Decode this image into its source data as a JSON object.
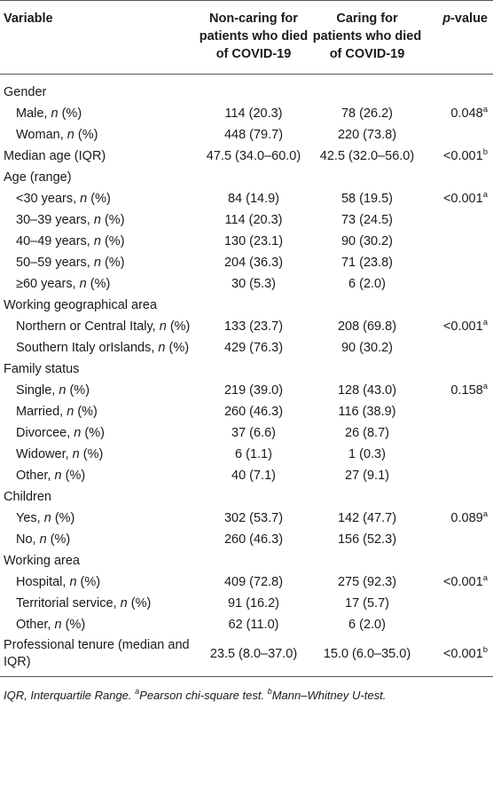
{
  "headers": {
    "variable": "Variable",
    "noncaring": "Non-caring for patients who died of COVID-19",
    "caring": "Caring for patients who died of COVID-19",
    "pvalue_italic": "p",
    "pvalue_rest": "-value"
  },
  "rows": [
    {
      "label": "Gender",
      "indent": false,
      "n_suffix": false,
      "c1": "",
      "c2": "",
      "p": "",
      "sup": ""
    },
    {
      "label": "Male, ",
      "indent": true,
      "n_suffix": true,
      "c1": "114 (20.3)",
      "c2": "78 (26.2)",
      "p": "0.048",
      "sup": "a"
    },
    {
      "label": "Woman, ",
      "indent": true,
      "n_suffix": true,
      "c1": "448 (79.7)",
      "c2": "220 (73.8)",
      "p": "",
      "sup": ""
    },
    {
      "label": "Median age (IQR)",
      "indent": false,
      "n_suffix": false,
      "c1": "47.5 (34.0–60.0)",
      "c2": "42.5 (32.0–56.0)",
      "p": "<0.001",
      "sup": "b"
    },
    {
      "label": "Age (range)",
      "indent": false,
      "n_suffix": false,
      "c1": "",
      "c2": "",
      "p": "",
      "sup": ""
    },
    {
      "label": "<30 years, ",
      "indent": true,
      "n_suffix": true,
      "c1": "84 (14.9)",
      "c2": "58 (19.5)",
      "p": "<0.001",
      "sup": "a"
    },
    {
      "label": "30–39 years, ",
      "indent": true,
      "n_suffix": true,
      "c1": "114 (20.3)",
      "c2": "73 (24.5)",
      "p": "",
      "sup": ""
    },
    {
      "label": "40–49 years, ",
      "indent": true,
      "n_suffix": true,
      "c1": "130 (23.1)",
      "c2": "90 (30.2)",
      "p": "",
      "sup": ""
    },
    {
      "label": "50–59 years, ",
      "indent": true,
      "n_suffix": true,
      "c1": "204 (36.3)",
      "c2": "71 (23.8)",
      "p": "",
      "sup": ""
    },
    {
      "label": "≥60 years, ",
      "indent": true,
      "n_suffix": true,
      "c1": "30 (5.3)",
      "c2": "6 (2.0)",
      "p": "",
      "sup": ""
    },
    {
      "label": "Working geographical area",
      "indent": false,
      "n_suffix": false,
      "c1": "",
      "c2": "",
      "p": "",
      "sup": ""
    },
    {
      "label": "Northern or Central Italy, ",
      "indent": true,
      "n_suffix": true,
      "c1": "133 (23.7)",
      "c2": "208 (69.8)",
      "p": "<0.001",
      "sup": "a"
    },
    {
      "label": "Southern Italy orIslands, ",
      "indent": true,
      "n_suffix": true,
      "c1": "429 (76.3)",
      "c2": "90 (30.2)",
      "p": "",
      "sup": ""
    },
    {
      "label": "Family status",
      "indent": false,
      "n_suffix": false,
      "c1": "",
      "c2": "",
      "p": "",
      "sup": ""
    },
    {
      "label": "Single, ",
      "indent": true,
      "n_suffix": true,
      "c1": "219 (39.0)",
      "c2": "128 (43.0)",
      "p": "0.158",
      "sup": "a"
    },
    {
      "label": "Married, ",
      "indent": true,
      "n_suffix": true,
      "c1": "260 (46.3)",
      "c2": "116 (38.9)",
      "p": "",
      "sup": ""
    },
    {
      "label": "Divorcee, ",
      "indent": true,
      "n_suffix": true,
      "c1": "37 (6.6)",
      "c2": "26 (8.7)",
      "p": "",
      "sup": ""
    },
    {
      "label": "Widower, ",
      "indent": true,
      "n_suffix": true,
      "c1": "6 (1.1)",
      "c2": "1 (0.3)",
      "p": "",
      "sup": ""
    },
    {
      "label": "Other, ",
      "indent": true,
      "n_suffix": true,
      "c1": "40 (7.1)",
      "c2": "27 (9.1)",
      "p": "",
      "sup": ""
    },
    {
      "label": "Children",
      "indent": false,
      "n_suffix": false,
      "c1": "",
      "c2": "",
      "p": "",
      "sup": ""
    },
    {
      "label": "Yes, ",
      "indent": true,
      "n_suffix": true,
      "c1": "302 (53.7)",
      "c2": "142 (47.7)",
      "p": "0.089",
      "sup": "a"
    },
    {
      "label": "No, ",
      "indent": true,
      "n_suffix": true,
      "c1": "260 (46.3)",
      "c2": "156 (52.3)",
      "p": "",
      "sup": ""
    },
    {
      "label": "Working area",
      "indent": false,
      "n_suffix": false,
      "c1": "",
      "c2": "",
      "p": "",
      "sup": ""
    },
    {
      "label": "Hospital, ",
      "indent": true,
      "n_suffix": true,
      "c1": "409 (72.8)",
      "c2": "275 (92.3)",
      "p": "<0.001",
      "sup": "a"
    },
    {
      "label": "Territorial service, ",
      "indent": true,
      "n_suffix": true,
      "c1": "91 (16.2)",
      "c2": "17 (5.7)",
      "p": "",
      "sup": ""
    },
    {
      "label": "Other, ",
      "indent": true,
      "n_suffix": true,
      "c1": "62 (11.0)",
      "c2": "6 (2.0)",
      "p": "",
      "sup": ""
    },
    {
      "label": "Professional tenure (median and IQR)",
      "indent": false,
      "n_suffix": false,
      "wrap": true,
      "c1": "23.5 (8.0–37.0)",
      "c2": "15.0 (6.0–35.0)",
      "p": "<0.001",
      "sup": "b"
    }
  ],
  "n_symbol": "n",
  "n_pct": " (%)",
  "footnote": {
    "abbr": "IQR, Interquartile Range. ",
    "a_mark": "a",
    "a_text": "Pearson chi-square test. ",
    "b_mark": "b",
    "b_text": "Mann–Whitney U-test."
  }
}
